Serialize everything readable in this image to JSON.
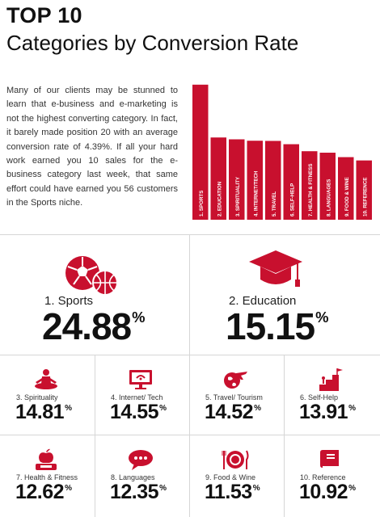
{
  "header": {
    "title": "TOP 10",
    "subtitle": "Categories by Conversion Rate"
  },
  "intro": {
    "text": "Many of our clients may be stunned to learn that e-business and e-marketing is not the highest converting category. In fact, it barely made position 20 with an average conversion rate of 4.39%. If all your hard work earned you 10 sales for the e-business category last week, that same effort could have earned you 56 customers in the Sports niche."
  },
  "chart_data": {
    "type": "bar",
    "categories": [
      "1. SPORTS",
      "2. EDUCATION",
      "3. SPIRITUALITY",
      "4. INTERNET/TECH",
      "5. TRAVEL",
      "6. SELF-HELP",
      "7. HEALTH & FITNESS",
      "8. LANGUAGES",
      "9. FOOD & WINE",
      "10. REFERENCE"
    ],
    "values": [
      24.88,
      15.15,
      14.81,
      14.55,
      14.52,
      13.91,
      12.62,
      12.35,
      11.53,
      10.92
    ],
    "bar_color": "#c8102e",
    "label_color": "#ffffff",
    "value_unit": "%"
  },
  "top_two": [
    {
      "label": "1. Sports",
      "value": "24.88",
      "unit": "%",
      "icon": "sports-balls-icon"
    },
    {
      "label": "2. Education",
      "value": "15.15",
      "unit": "%",
      "icon": "graduation-cap-icon"
    }
  ],
  "grid": [
    {
      "label": "3. Spirituality",
      "value": "14.81",
      "unit": "%",
      "icon": "meditation-icon"
    },
    {
      "label": "4. Internet/ Tech",
      "value": "14.55",
      "unit": "%",
      "icon": "monitor-icon"
    },
    {
      "label": "5. Travel/ Tourism",
      "value": "14.52",
      "unit": "%",
      "icon": "airplane-globe-icon"
    },
    {
      "label": "6. Self-Help",
      "value": "13.91",
      "unit": "%",
      "icon": "steps-flag-icon"
    },
    {
      "label": "7. Health & Fitness",
      "value": "12.62",
      "unit": "%",
      "icon": "apple-scale-icon"
    },
    {
      "label": "8. Languages",
      "value": "12.35",
      "unit": "%",
      "icon": "speech-bubble-icon"
    },
    {
      "label": "9. Food & Wine",
      "value": "11.53",
      "unit": "%",
      "icon": "plate-cutlery-icon"
    },
    {
      "label": "10. Reference",
      "value": "10.92",
      "unit": "%",
      "icon": "book-icon"
    }
  ],
  "colors": {
    "accent": "#c8102e",
    "text": "#111111"
  }
}
